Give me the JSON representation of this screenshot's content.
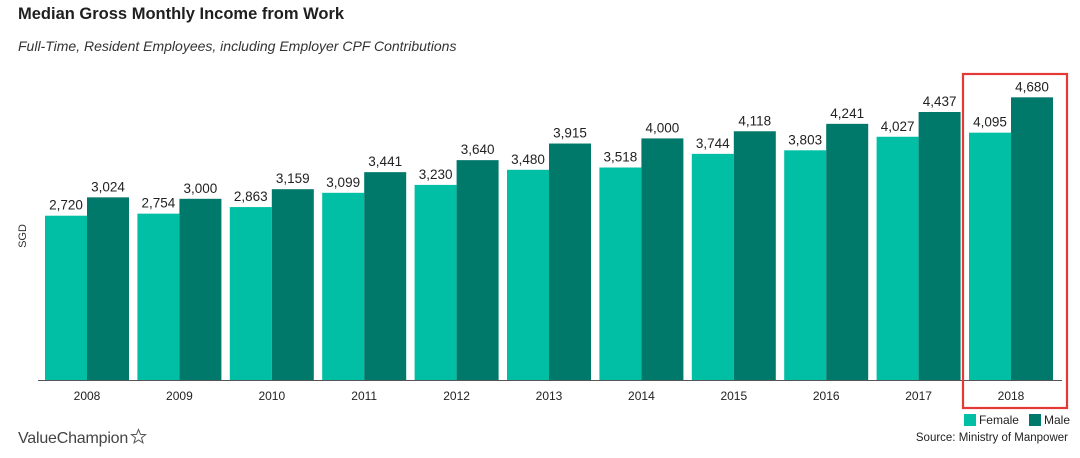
{
  "header": {
    "title": "Median Gross Monthly Income from Work",
    "subtitle": "Full-Time, Resident Employees, including Employer CPF Contributions"
  },
  "footer": {
    "brand": "ValueChampion",
    "source": "Source: Ministry of Manpower"
  },
  "colors": {
    "female": "#00BFA5",
    "male": "#00796B",
    "highlight": "#E53935"
  },
  "chart_data": {
    "type": "bar",
    "title": "Median Gross Monthly Income from Work",
    "subtitle": "Full-Time, Resident Employees, including Employer CPF Contributions",
    "ylabel": "SGD",
    "xlabel": "",
    "ylim": [
      0,
      5000
    ],
    "grid": false,
    "legend_position": "bottom-right",
    "highlight_category": "2018",
    "categories": [
      "2008",
      "2009",
      "2010",
      "2011",
      "2012",
      "2013",
      "2014",
      "2015",
      "2016",
      "2017",
      "2018"
    ],
    "series": [
      {
        "name": "Female",
        "values": [
          2720,
          2754,
          2863,
          3099,
          3230,
          3480,
          3518,
          3744,
          3803,
          4027,
          4095
        ]
      },
      {
        "name": "Male",
        "values": [
          3024,
          3000,
          3159,
          3441,
          3640,
          3915,
          4000,
          4118,
          4241,
          4437,
          4680
        ]
      }
    ]
  }
}
